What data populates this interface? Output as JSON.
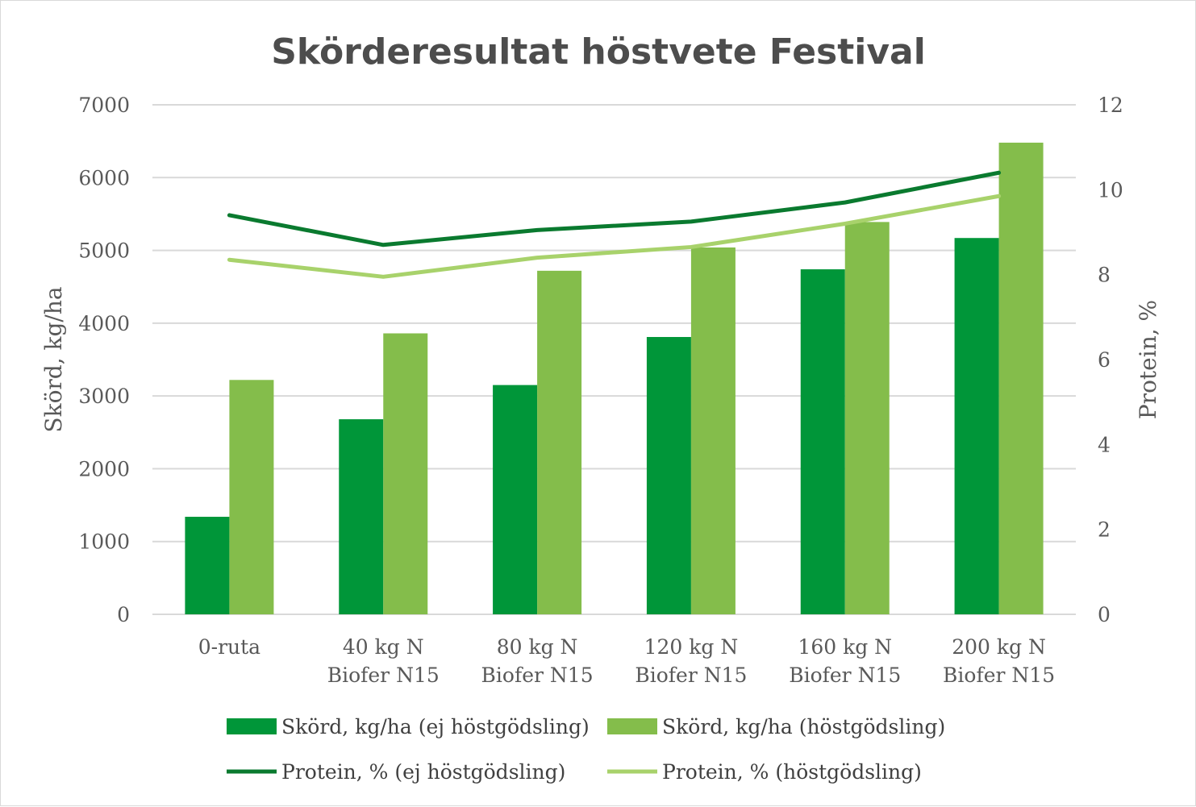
{
  "chart_data": {
    "type": "bar",
    "title": "Skörderesultat höstvete Festival",
    "categories": [
      [
        "0-ruta"
      ],
      [
        "40 kg N",
        "Biofer N15"
      ],
      [
        "80 kg N",
        "Biofer N15"
      ],
      [
        "120 kg N",
        "Biofer N15"
      ],
      [
        "160 kg N",
        "Biofer N15"
      ],
      [
        "200 kg N",
        "Biofer N15"
      ]
    ],
    "ylabel": "Skörd, kg/ha",
    "y2label": "Protein, %",
    "ylim": [
      0,
      7000
    ],
    "y2lim": [
      0,
      12
    ],
    "yticks": [
      0,
      1000,
      2000,
      3000,
      4000,
      5000,
      6000,
      7000
    ],
    "y2ticks": [
      0,
      2,
      4,
      6,
      8,
      10,
      12
    ],
    "grid": true,
    "legend_position": "bottom",
    "series": [
      {
        "name": "Skörd, kg/ha (ej höstgödsling)",
        "type": "bar",
        "axis": "left",
        "color": "#009639",
        "values": [
          1340,
          2680,
          3150,
          3810,
          4740,
          5170
        ]
      },
      {
        "name": "Skörd, kg/ha (höstgödsling)",
        "type": "bar",
        "axis": "left",
        "color": "#84bd4b",
        "values": [
          3220,
          3860,
          4720,
          5040,
          5390,
          6480
        ]
      },
      {
        "name": "Protein, % (ej höstgödsling)",
        "type": "line",
        "axis": "right",
        "color": "#0a7a2f",
        "values": [
          9.4,
          8.7,
          9.05,
          9.25,
          9.7,
          10.4
        ]
      },
      {
        "name": "Protein, % (höstgödsling)",
        "type": "line",
        "axis": "right",
        "color": "#a8d26b",
        "values": [
          8.35,
          7.95,
          8.4,
          8.65,
          9.2,
          9.85
        ]
      }
    ]
  }
}
